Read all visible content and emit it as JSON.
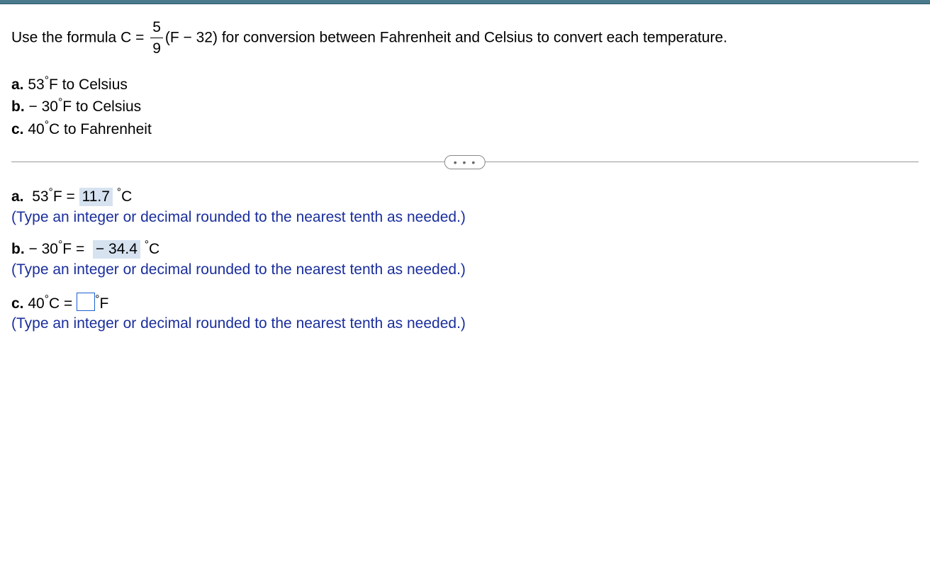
{
  "topbar": {
    "color": "#4a7a8c"
  },
  "intro": {
    "before": "Use the formula C =",
    "frac_num": "5",
    "frac_den": "9",
    "after": "(F − 32) for conversion between Fahrenheit and Celsius to convert each temperature."
  },
  "questions": {
    "a": {
      "label": "a.",
      "value": "53",
      "unit_from": "F",
      "unit_to": "Celsius"
    },
    "b": {
      "label": "b.",
      "prefix": "−",
      "value": "30",
      "unit_from": "F",
      "unit_to": "Celsius"
    },
    "c": {
      "label": "c.",
      "value": "40",
      "unit_from": "C",
      "unit_to": "Fahrenheit"
    }
  },
  "divider": {
    "dots": "• • •"
  },
  "answers": {
    "a": {
      "label": "a.",
      "lhs_value": "53",
      "lhs_unit": "F",
      "rhs_value": "11.7",
      "rhs_unit": "C",
      "hint": "(Type an integer or decimal rounded to the nearest tenth as needed.)"
    },
    "b": {
      "label": "b.",
      "lhs_prefix": "−",
      "lhs_value": "30",
      "lhs_unit": "F",
      "rhs_prefix": "−",
      "rhs_value": "34.4",
      "rhs_unit": "C",
      "hint": "(Type an integer or decimal rounded to the nearest tenth as needed.)"
    },
    "c": {
      "label": "c.",
      "lhs_value": "40",
      "lhs_unit": "C",
      "rhs_unit": "F",
      "hint": "(Type an integer or decimal rounded to the nearest tenth as needed.)"
    }
  },
  "colors": {
    "hint": "#1a2e9c",
    "highlight_bg": "#d6e2f0",
    "input_border": "#1a5fd0"
  }
}
